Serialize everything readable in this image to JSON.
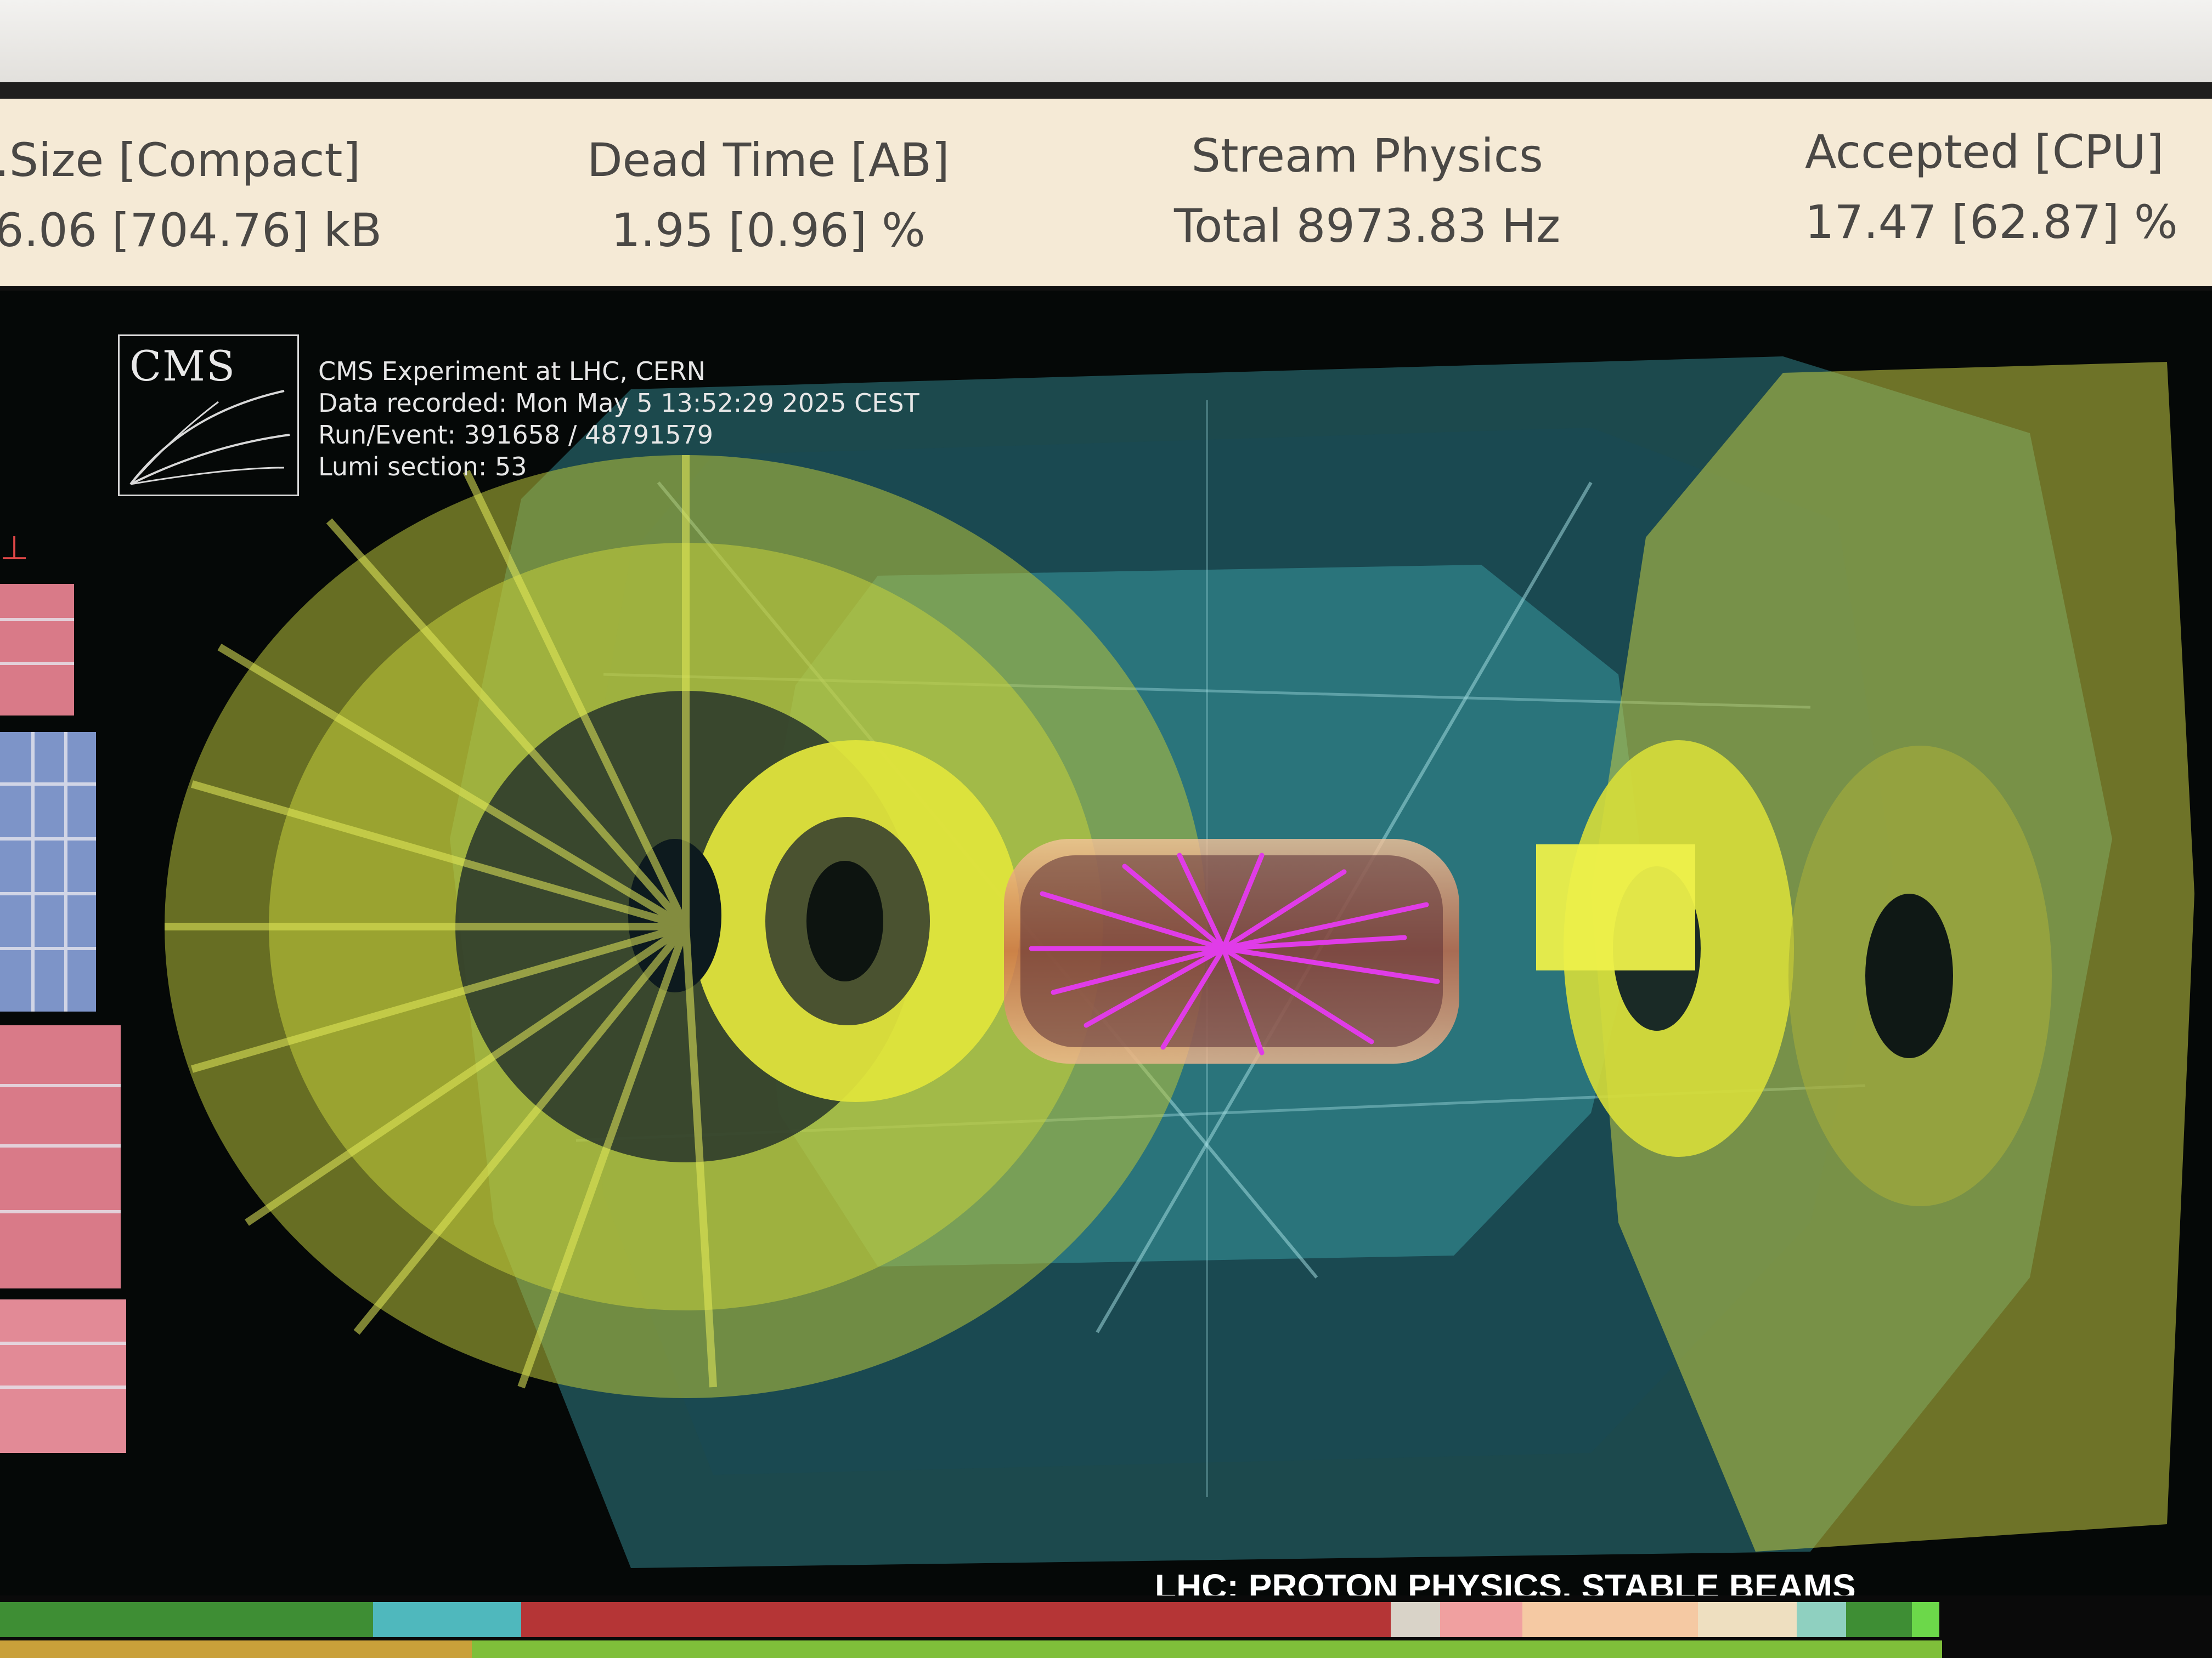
{
  "status": {
    "size": {
      "label": ".Size [Compact]",
      "value": "6.06 [704.76] kB"
    },
    "dead_time": {
      "label": "Dead Time [AB]",
      "value": "1.95 [0.96] %"
    },
    "stream": {
      "label": "Stream Physics",
      "value": "Total  8973.83 Hz"
    },
    "accepted": {
      "label": "Accepted [CPU]",
      "value": "17.47 [62.87] %"
    }
  },
  "event": {
    "logo": "CMS",
    "line1": "CMS Experiment at LHC, CERN",
    "line2": "Data recorded: Mon May  5 13:52:29 2025 CEST",
    "line3": "Run/Event: 391658 / 48791579",
    "line4": "Lumi section: 53"
  },
  "lhc_status": "LHC: PROTON PHYSICS, STABLE BEAMS",
  "colors": {
    "status_bg": "#f5ead6",
    "calorimeter_yellow": "#d9e23a",
    "muon_teal": "#3aa9b3",
    "tracks_magenta": "#e03ce8",
    "tracker_orange": "#f0a070"
  }
}
